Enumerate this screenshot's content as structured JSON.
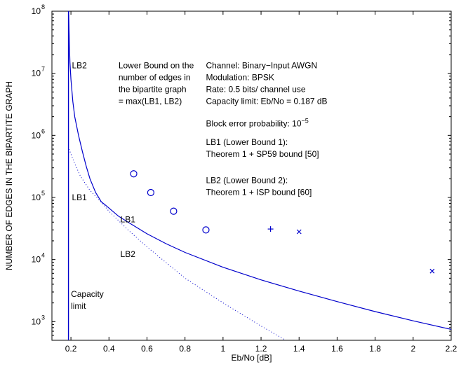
{
  "chart_data": {
    "type": "line",
    "title": "",
    "xlabel": "Eb/No [dB]",
    "ylabel": "NUMBER OF EDGES IN THE BIPARTITE GRAPH",
    "xlim": [
      0.1,
      2.2
    ],
    "ylim": [
      500,
      100000000
    ],
    "yscale": "log",
    "grid": false,
    "x_ticks": [
      0.2,
      0.4,
      0.6,
      0.8,
      1,
      1.2,
      1.4,
      1.6,
      1.8,
      2,
      2.2
    ],
    "x_tick_labels": [
      "0.2",
      "0.4",
      "0.6",
      "0.8",
      "1",
      "1.2",
      "1.4",
      "1.6",
      "1.8",
      "2",
      "2.2"
    ],
    "y_ticks": [
      1000,
      10000,
      100000,
      1000000,
      10000000,
      100000000
    ],
    "y_tick_labels": [
      {
        "base": "10",
        "exp": "3"
      },
      {
        "base": "10",
        "exp": "4"
      },
      {
        "base": "10",
        "exp": "5"
      },
      {
        "base": "10",
        "exp": "6"
      },
      {
        "base": "10",
        "exp": "7"
      },
      {
        "base": "10",
        "exp": "8"
      }
    ],
    "capacity_limit_x": 0.187,
    "series": [
      {
        "key": "lb1",
        "style": "solid",
        "color": "#0000cc",
        "x": [
          0.187,
          0.188,
          0.19,
          0.192,
          0.195,
          0.2,
          0.21,
          0.22,
          0.24,
          0.26,
          0.28,
          0.3,
          0.33,
          0.36,
          0.38
        ],
        "y": [
          100000000,
          100000000,
          50000000,
          30000000,
          15000000,
          8000000,
          3500000,
          2000000,
          1000000,
          550000,
          320000,
          200000,
          120000,
          85000,
          76000
        ]
      },
      {
        "key": "lb2",
        "style": "solid",
        "color": "#0000cc",
        "x": [
          0.38,
          0.45,
          0.5,
          0.6,
          0.7,
          0.8,
          1.0,
          1.2,
          1.4,
          1.6,
          1.8,
          2.0,
          2.2
        ],
        "y": [
          76000,
          50000,
          40000,
          26000,
          18000,
          13000,
          7500,
          4700,
          3100,
          2100,
          1450,
          1030,
          750
        ]
      },
      {
        "key": "lb1-dotted",
        "style": "dotted",
        "color": "#0000cc",
        "x": [
          0.19,
          0.2,
          0.22,
          0.25,
          0.3,
          0.35,
          0.4,
          0.5,
          0.6,
          0.8,
          1.0,
          1.2,
          1.33
        ],
        "y": [
          600000,
          500000,
          350000,
          220000,
          130000,
          90000,
          60000,
          30000,
          16000,
          5000,
          2000,
          850,
          500
        ]
      }
    ],
    "markers": [
      {
        "symbol": "circle",
        "color": "#0000cc",
        "points": [
          {
            "x": 0.53,
            "y": 240000
          },
          {
            "x": 0.62,
            "y": 120000
          },
          {
            "x": 0.74,
            "y": 60000
          },
          {
            "x": 0.91,
            "y": 30000
          }
        ]
      },
      {
        "symbol": "plus",
        "color": "#0000cc",
        "points": [
          {
            "x": 1.25,
            "y": 31000
          }
        ]
      },
      {
        "symbol": "cross",
        "color": "#0000cc",
        "points": [
          {
            "x": 1.4,
            "y": 28000
          },
          {
            "x": 2.1,
            "y": 6500
          }
        ]
      }
    ],
    "annotations": [
      {
        "key": "lb2-top",
        "lines": [
          "LB2"
        ],
        "x": 0.205,
        "y": 12000000
      },
      {
        "key": "lb1-upper",
        "lines": [
          "LB1"
        ],
        "x": 0.205,
        "y": 90000
      },
      {
        "key": "lb1-mid",
        "lines": [
          "LB1"
        ],
        "x": 0.46,
        "y": 40000
      },
      {
        "key": "lb2-mid",
        "lines": [
          "LB2"
        ],
        "x": 0.46,
        "y": 11000
      },
      {
        "key": "capacity",
        "lines": [
          "Capacity",
          "limit"
        ],
        "x": 0.2,
        "y": 2500
      },
      {
        "key": "lower-bound",
        "lines": [
          "Lower Bound on the",
          "number of edges in",
          "the bipartite graph",
          "= max(LB1, LB2)"
        ],
        "x": 0.45,
        "y": 12000000
      },
      {
        "key": "channel-info",
        "lines": [
          "Channel: Binary−Input AWGN",
          "Modulation: BPSK",
          "Rate: 0.5 bits/ channel use",
          "Capacity limit: Eb/No = 0.187 dB"
        ],
        "x": 0.91,
        "y": 12000000
      },
      {
        "key": "block-error",
        "lines": [
          "Block error probability: 10"
        ],
        "sup": "−5",
        "x": 0.91,
        "y": 1400000
      },
      {
        "key": "lb1-def",
        "lines": [
          "LB1 (Lower Bound 1):",
          "Theorem 1 + SP59 bound [50]"
        ],
        "x": 0.91,
        "y": 700000
      },
      {
        "key": "lb2-def",
        "lines": [
          "LB2  (Lower Bound 2):",
          "Theorem 1 + ISP bound [60]"
        ],
        "x": 0.91,
        "y": 170000
      }
    ]
  }
}
